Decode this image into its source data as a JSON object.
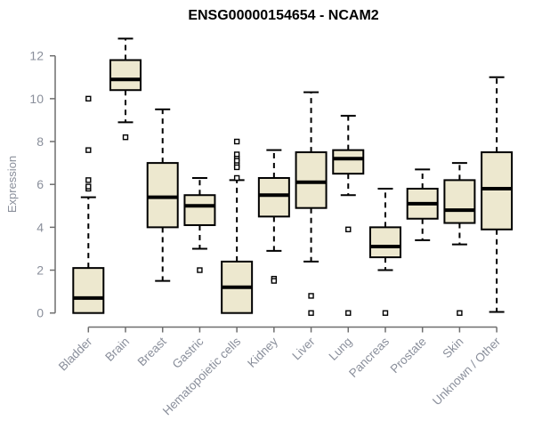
{
  "chart_data": {
    "type": "boxplot",
    "title": "ENSG00000154654 - NCAM2",
    "xlabel": "",
    "ylabel": "Expression",
    "ylim": [
      0,
      12
    ],
    "yticks": [
      0,
      2,
      4,
      6,
      8,
      10,
      12
    ],
    "grid": false,
    "legend": "none",
    "categories": [
      "Bladder",
      "Brain",
      "Breast",
      "Gastric",
      "Hematopoietic cells",
      "Kidney",
      "Liver",
      "Lung",
      "Pancreas",
      "Prostate",
      "Skin",
      "Unknown / Other"
    ],
    "boxes": [
      {
        "label": "Bladder",
        "whisker_low": 0,
        "q1": 0,
        "median": 0.7,
        "q3": 2.1,
        "whisker_high": 5.4,
        "outliers": [
          5.8,
          5.9,
          6.2,
          7.6,
          10.0
        ]
      },
      {
        "label": "Brain",
        "whisker_low": 8.9,
        "q1": 10.4,
        "median": 10.9,
        "q3": 11.8,
        "whisker_high": 12.8,
        "outliers": [
          8.2
        ]
      },
      {
        "label": "Breast",
        "whisker_low": 1.5,
        "q1": 4.0,
        "median": 5.4,
        "q3": 7.0,
        "whisker_high": 9.5,
        "outliers": []
      },
      {
        "label": "Gastric",
        "whisker_low": 3.0,
        "q1": 4.1,
        "median": 5.0,
        "q3": 5.5,
        "whisker_high": 6.3,
        "outliers": [
          2.0
        ]
      },
      {
        "label": "Hematopoietic cells",
        "whisker_low": 0,
        "q1": 0,
        "median": 1.2,
        "q3": 2.4,
        "whisker_high": 6.2,
        "outliers": [
          8.0,
          7.4,
          7.2,
          7.1,
          6.9,
          6.8,
          6.3
        ]
      },
      {
        "label": "Kidney",
        "whisker_low": 2.9,
        "q1": 4.5,
        "median": 5.5,
        "q3": 6.3,
        "whisker_high": 7.6,
        "outliers": [
          1.6,
          1.5
        ]
      },
      {
        "label": "Liver",
        "whisker_low": 2.4,
        "q1": 4.9,
        "median": 6.1,
        "q3": 7.5,
        "whisker_high": 10.3,
        "outliers": [
          0.8,
          0
        ]
      },
      {
        "label": "Lung",
        "whisker_low": 5.5,
        "q1": 6.5,
        "median": 7.2,
        "q3": 7.6,
        "whisker_high": 9.2,
        "outliers": [
          3.9,
          0
        ]
      },
      {
        "label": "Pancreas",
        "whisker_low": 2.0,
        "q1": 2.6,
        "median": 3.1,
        "q3": 4.0,
        "whisker_high": 5.8,
        "outliers": [
          0
        ]
      },
      {
        "label": "Prostate",
        "whisker_low": 3.4,
        "q1": 4.4,
        "median": 5.1,
        "q3": 5.8,
        "whisker_high": 6.7,
        "outliers": []
      },
      {
        "label": "Skin",
        "whisker_low": 3.2,
        "q1": 4.2,
        "median": 4.8,
        "q3": 6.2,
        "whisker_high": 7.0,
        "outliers": [
          0
        ]
      },
      {
        "label": "Unknown / Other",
        "whisker_low": 0.05,
        "q1": 3.9,
        "median": 5.8,
        "q3": 7.5,
        "whisker_high": 11.0,
        "outliers": []
      }
    ],
    "colors": {
      "box_fill": "#EDE8CF",
      "box_border": "#000000",
      "median": "#000000",
      "whisker": "#000000",
      "outlier_fill": "#ffffff",
      "axis": "#6e6e6e",
      "labels": "#8a8f9b",
      "title": "#000000",
      "background": "#ffffff"
    }
  }
}
